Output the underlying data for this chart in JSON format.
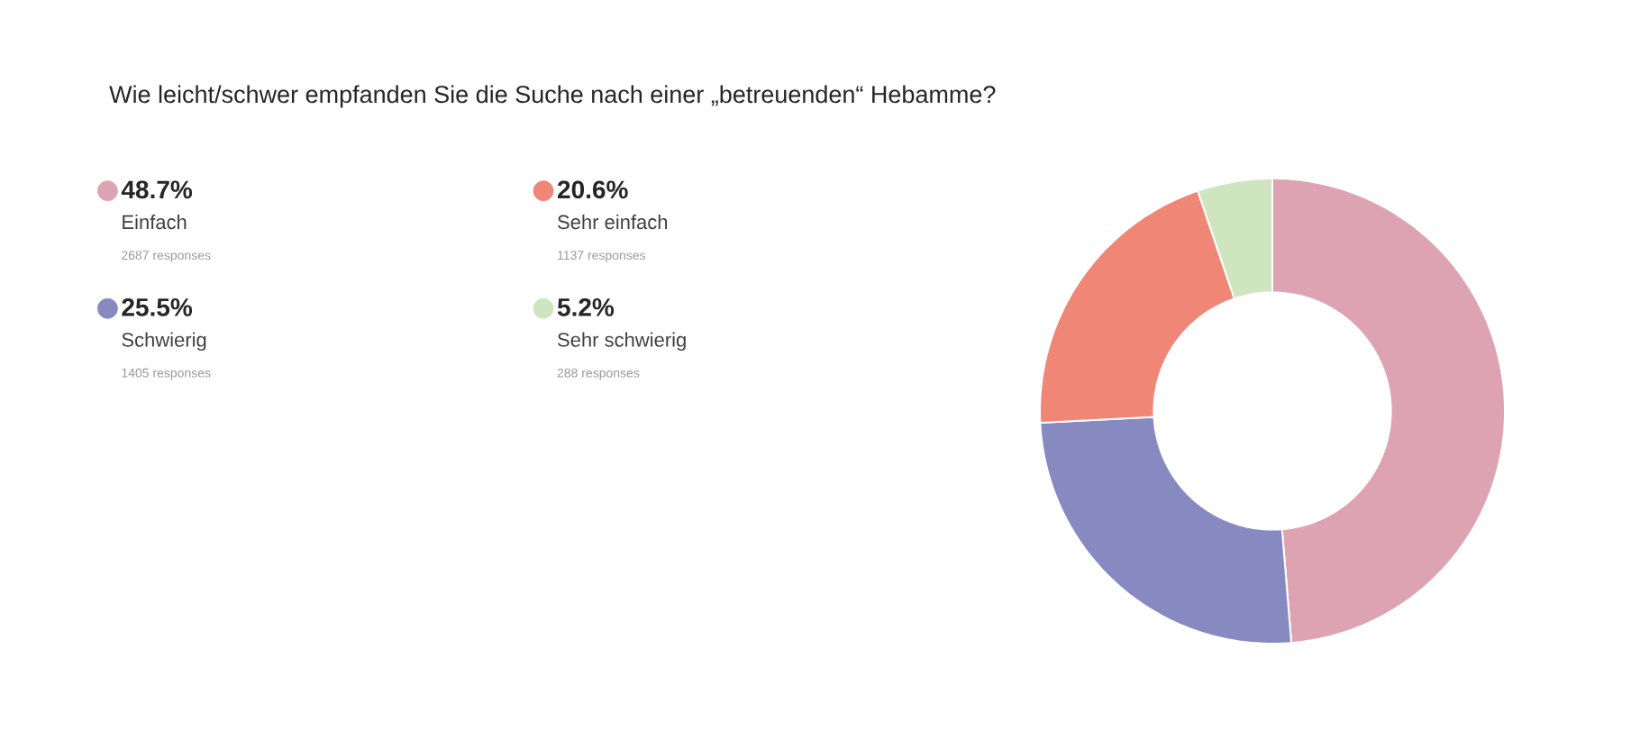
{
  "chart_data": {
    "type": "donut",
    "title": "Wie leicht/schwer empfanden Sie die Suche nach einer „betreuenden“ Hebamme?",
    "categories": [
      "Einfach",
      "Schwierig",
      "Sehr einfach",
      "Sehr schwierig"
    ],
    "values": [
      48.7,
      25.5,
      20.6,
      5.2
    ],
    "colors": [
      "#dda3b2",
      "#8789c1",
      "#ef8676",
      "#cfe5bf"
    ],
    "value_labels": [
      "48.7%",
      "25.5%",
      "20.6%",
      "5.2%"
    ],
    "annotations": [
      "2687 responses",
      "1405 responses",
      "1137 responses",
      "288 responses"
    ],
    "legend": "left"
  }
}
